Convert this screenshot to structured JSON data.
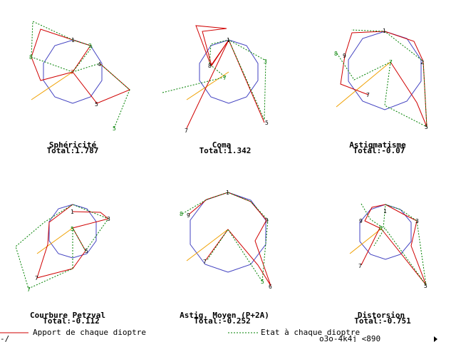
{
  "panels": [
    {
      "title": "Sphéricité",
      "total": "Total:1.787"
    },
    {
      "title": "Coma",
      "total": "Total:1.342"
    },
    {
      "title": "Astigmatisme",
      "total": "Total:-0.07"
    },
    {
      "title": "Courbure Petzval",
      "total": "Total:-0.112"
    },
    {
      "title": "Astig. Moyen (P+2A)",
      "total": "Total:-0.252"
    },
    {
      "title": "Distorsion",
      "total": "Total:-0.751"
    }
  ],
  "legend": {
    "contribution": "Apport de chaque dioptre",
    "cumulative": "Etat à chaque dioptre",
    "code": "o3o-4k4j <890",
    "cursor_mark": "-/_"
  },
  "colors": {
    "polygon": "#4040c0",
    "contribution": "#d00000",
    "cumulative": "#008000",
    "axis": "#f0a000",
    "background": "#ffffff"
  },
  "point_labels": [
    "1",
    "2",
    "3",
    "4",
    "5",
    "6",
    "7",
    "8",
    "9"
  ]
}
